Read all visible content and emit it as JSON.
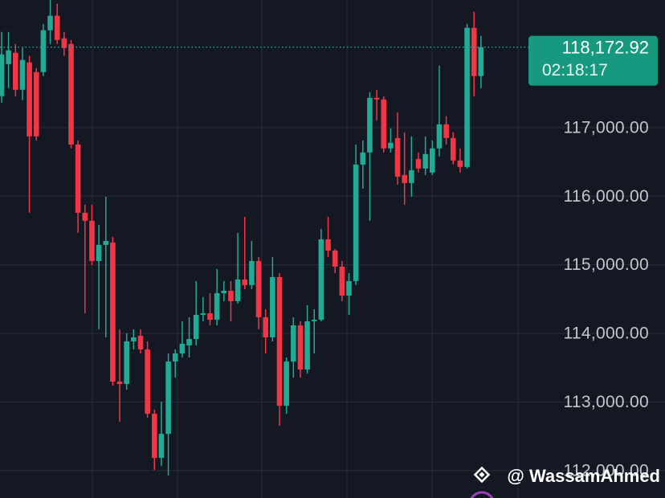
{
  "chart_data": {
    "type": "candlestick",
    "up_color": "#22ab94",
    "down_color": "#f23645",
    "grid": true,
    "ylim": [
      111600,
      118860
    ],
    "yticks": [
      {
        "value": 112000,
        "label": "112,000.00"
      },
      {
        "value": 113000,
        "label": "113,000.00"
      },
      {
        "value": 114000,
        "label": "114,000.00"
      },
      {
        "value": 115000,
        "label": "115,000.00"
      },
      {
        "value": 116000,
        "label": "116,000.00"
      },
      {
        "value": 117000,
        "label": "117,000.00"
      }
    ],
    "current_price": {
      "value": 118172.92,
      "label": "118,172.92"
    },
    "countdown": "02:18:17",
    "watermark": "@ WassamAhmed",
    "open": [
      117458,
      117926,
      118090,
      117551,
      117950,
      117809,
      117809,
      118419,
      118630,
      118301,
      118219,
      116754,
      115758,
      115641,
      115055,
      115290,
      115325,
      113297,
      113262,
      113883,
      113965,
      113766,
      112828,
      112184,
      112535,
      113590,
      113707,
      113824,
      113918,
      114270,
      114293,
      114199,
      114586,
      114621,
      114469,
      114786,
      114704,
      115055,
      114235,
      113942,
      114821,
      112945,
      113590,
      114117,
      113473,
      114176,
      114199,
      115371,
      115207,
      114973,
      114551,
      114762,
      116461,
      116637,
      117434,
      117411,
      116696,
      116848,
      116309,
      116192,
      116543,
      116403,
      116344,
      116696,
      117047,
      116848,
      116520,
      116426,
      118454,
      117751
    ],
    "high": [
      118395,
      118395,
      118219,
      118161,
      118044,
      117868,
      118512,
      118864,
      118805,
      118395,
      118278,
      116813,
      115875,
      115875,
      115582,
      115993,
      115407,
      114059,
      114000,
      114059,
      114059,
      113883,
      112887,
      113004,
      113707,
      113766,
      114176,
      114235,
      114762,
      114528,
      114586,
      114938,
      114762,
      114762,
      115465,
      115700,
      115348,
      115114,
      114352,
      115114,
      114879,
      113649,
      114235,
      114176,
      114410,
      114352,
      115524,
      115700,
      115231,
      115055,
      114879,
      116754,
      116813,
      117516,
      117551,
      117458,
      116989,
      117223,
      116930,
      116872,
      116637,
      116872,
      116813,
      117903,
      117165,
      116930,
      116696,
      118512,
      118688,
      118337
    ],
    "low": [
      117364,
      117575,
      117458,
      117399,
      115758,
      116813,
      117751,
      118219,
      118219,
      118044,
      116696,
      115465,
      114293,
      114996,
      114059,
      113942,
      113238,
      112711,
      113180,
      113766,
      113707,
      112770,
      112008,
      112066,
      111926,
      113356,
      113649,
      113649,
      113824,
      114176,
      114117,
      114117,
      114469,
      114176,
      114434,
      114645,
      114645,
      114059,
      113707,
      113883,
      112652,
      112828,
      113356,
      113356,
      113414,
      113707,
      114176,
      115114,
      114879,
      114469,
      114270,
      114704,
      116110,
      115641,
      117106,
      116637,
      116637,
      116168,
      115875,
      115993,
      116344,
      116309,
      116309,
      116579,
      116754,
      116461,
      116344,
      116403,
      117458,
      117575
    ],
    "close": [
      118067,
      118126,
      117551,
      117985,
      116872,
      116872,
      118419,
      118630,
      118278,
      118161,
      116754,
      115758,
      115641,
      115055,
      115290,
      115348,
      113297,
      113262,
      113883,
      113942,
      113766,
      112828,
      112184,
      112535,
      113590,
      113707,
      113848,
      113918,
      114270,
      114293,
      114199,
      114586,
      114621,
      114469,
      114786,
      114704,
      115055,
      114235,
      113942,
      114821,
      112945,
      113590,
      114117,
      113473,
      114176,
      114199,
      115371,
      115207,
      114973,
      114551,
      114762,
      116461,
      116637,
      117434,
      117411,
      116696,
      116778,
      116286,
      116192,
      116379,
      116403,
      116614,
      116696,
      117047,
      116848,
      116520,
      116426,
      118454,
      117751,
      118172.92
    ]
  }
}
